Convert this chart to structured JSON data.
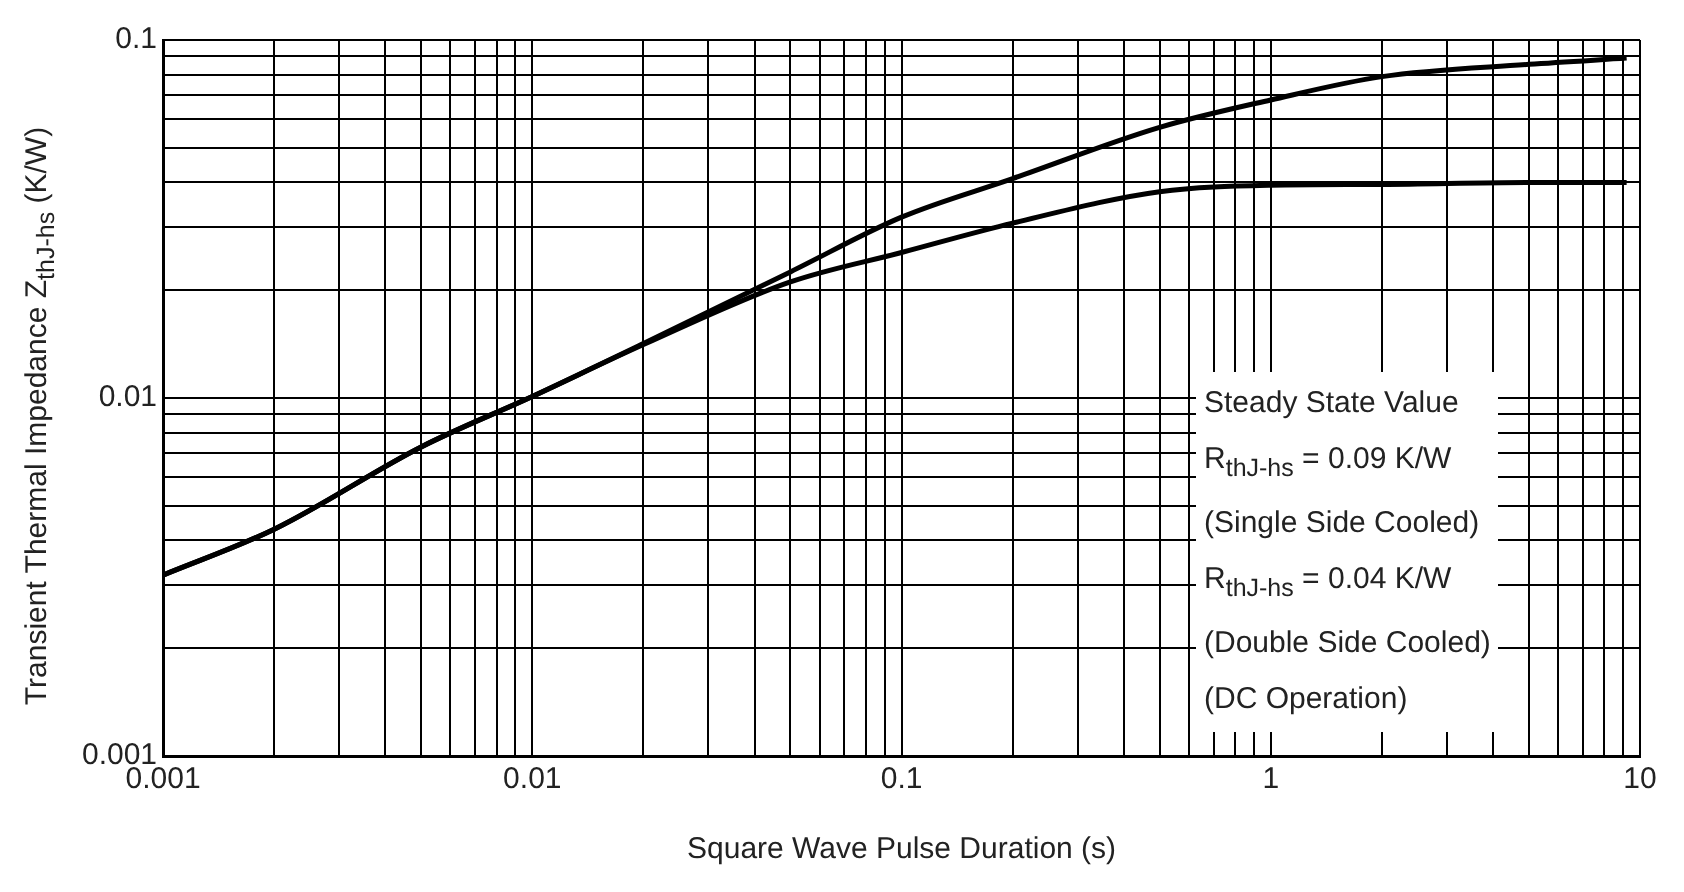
{
  "chart_data": {
    "type": "line",
    "xlabel": "Square Wave Pulse Duration (s)",
    "ylabel": "Transient Thermal Impedance Z$_{thJ-hs}$ (K/W)",
    "annotations": [
      "Steady State Value",
      "R$_{thJ-hs}$ = 0.09 K/W",
      "(Single Side Cooled)",
      "R$_{thJ-hs}$ = 0.04 K/W",
      "(Double Side Cooled)",
      "(DC Operation)"
    ],
    "log": "xy",
    "xlim": [
      0.001,
      10
    ],
    "ylim": [
      0.001,
      0.1
    ],
    "xticks": [
      0.001,
      {
        "value": 0.002,
        "label": null
      },
      {
        "value": 0.003,
        "label": null
      },
      {
        "value": 0.004,
        "label": null
      },
      {
        "value": 0.005,
        "label": null
      },
      {
        "value": 0.006,
        "label": null
      },
      {
        "value": 0.007,
        "label": null
      },
      {
        "value": 0.008,
        "label": null
      },
      {
        "value": 0.009,
        "label": null
      },
      0.01,
      {
        "value": 0.02,
        "label": null
      },
      {
        "value": 0.03,
        "label": null
      },
      {
        "value": 0.04,
        "label": null
      },
      {
        "value": 0.05,
        "label": null
      },
      {
        "value": 0.06,
        "label": null
      },
      {
        "value": 0.07,
        "label": null
      },
      {
        "value": 0.08,
        "label": null
      },
      {
        "value": 0.09,
        "label": null
      },
      0.1,
      {
        "value": 0.2,
        "label": null
      },
      {
        "value": 0.3,
        "label": null
      },
      {
        "value": 0.4,
        "label": null
      },
      {
        "value": 0.5,
        "label": null
      },
      {
        "value": 0.6,
        "label": null
      },
      {
        "value": 0.7,
        "label": null
      },
      {
        "value": 0.8,
        "label": null
      },
      {
        "value": 0.9,
        "label": null
      },
      1,
      {
        "value": 2,
        "label": null
      },
      {
        "value": 3,
        "label": null
      },
      {
        "value": 4,
        "label": null
      },
      {
        "value": 5,
        "label": null
      },
      {
        "value": 6,
        "label": null
      },
      {
        "value": 7,
        "label": null
      },
      {
        "value": 8,
        "label": null
      },
      {
        "value": 9,
        "label": null
      },
      10
    ],
    "yticks": [
      0.001,
      {
        "value": 0.002,
        "label": null
      },
      {
        "value": 0.003,
        "label": null
      },
      {
        "value": 0.004,
        "label": null
      },
      {
        "value": 0.005,
        "label": null
      },
      {
        "value": 0.006,
        "label": null
      },
      {
        "value": 0.007,
        "label": null
      },
      {
        "value": 0.008,
        "label": null
      },
      {
        "value": 0.009,
        "label": null
      },
      0.01,
      {
        "value": 0.02,
        "label": null
      },
      {
        "value": 0.03,
        "label": null
      },
      {
        "value": 0.04,
        "label": null
      },
      {
        "value": 0.05,
        "label": null
      },
      {
        "value": 0.06,
        "label": null
      },
      {
        "value": 0.07,
        "label": null
      },
      {
        "value": 0.08,
        "label": null
      },
      {
        "value": 0.09,
        "label": null
      },
      0.1
    ],
    "grid": true,
    "line_style": "solid",
    "series": [
      {
        "color": "#000000",
        "x": [
          0.001,
          0.002,
          0.005,
          0.01,
          0.02,
          0.05,
          0.1,
          0.2,
          0.5,
          1,
          2,
          5,
          9.2
        ],
        "values": [
          0.0032,
          0.0043,
          0.0073,
          0.0101,
          0.0142,
          0.0225,
          0.032,
          0.041,
          0.057,
          0.068,
          0.079,
          0.0855,
          0.089
        ]
      },
      {
        "color": "#000000",
        "x": [
          0.001,
          0.002,
          0.005,
          0.01,
          0.02,
          0.05,
          0.1,
          0.2,
          0.5,
          1,
          2,
          5,
          9.2
        ],
        "values": [
          0.0032,
          0.0043,
          0.0073,
          0.0101,
          0.0141,
          0.0211,
          0.0255,
          0.0308,
          0.0377,
          0.0393,
          0.0395,
          0.04,
          0.04
        ]
      }
    ]
  }
}
